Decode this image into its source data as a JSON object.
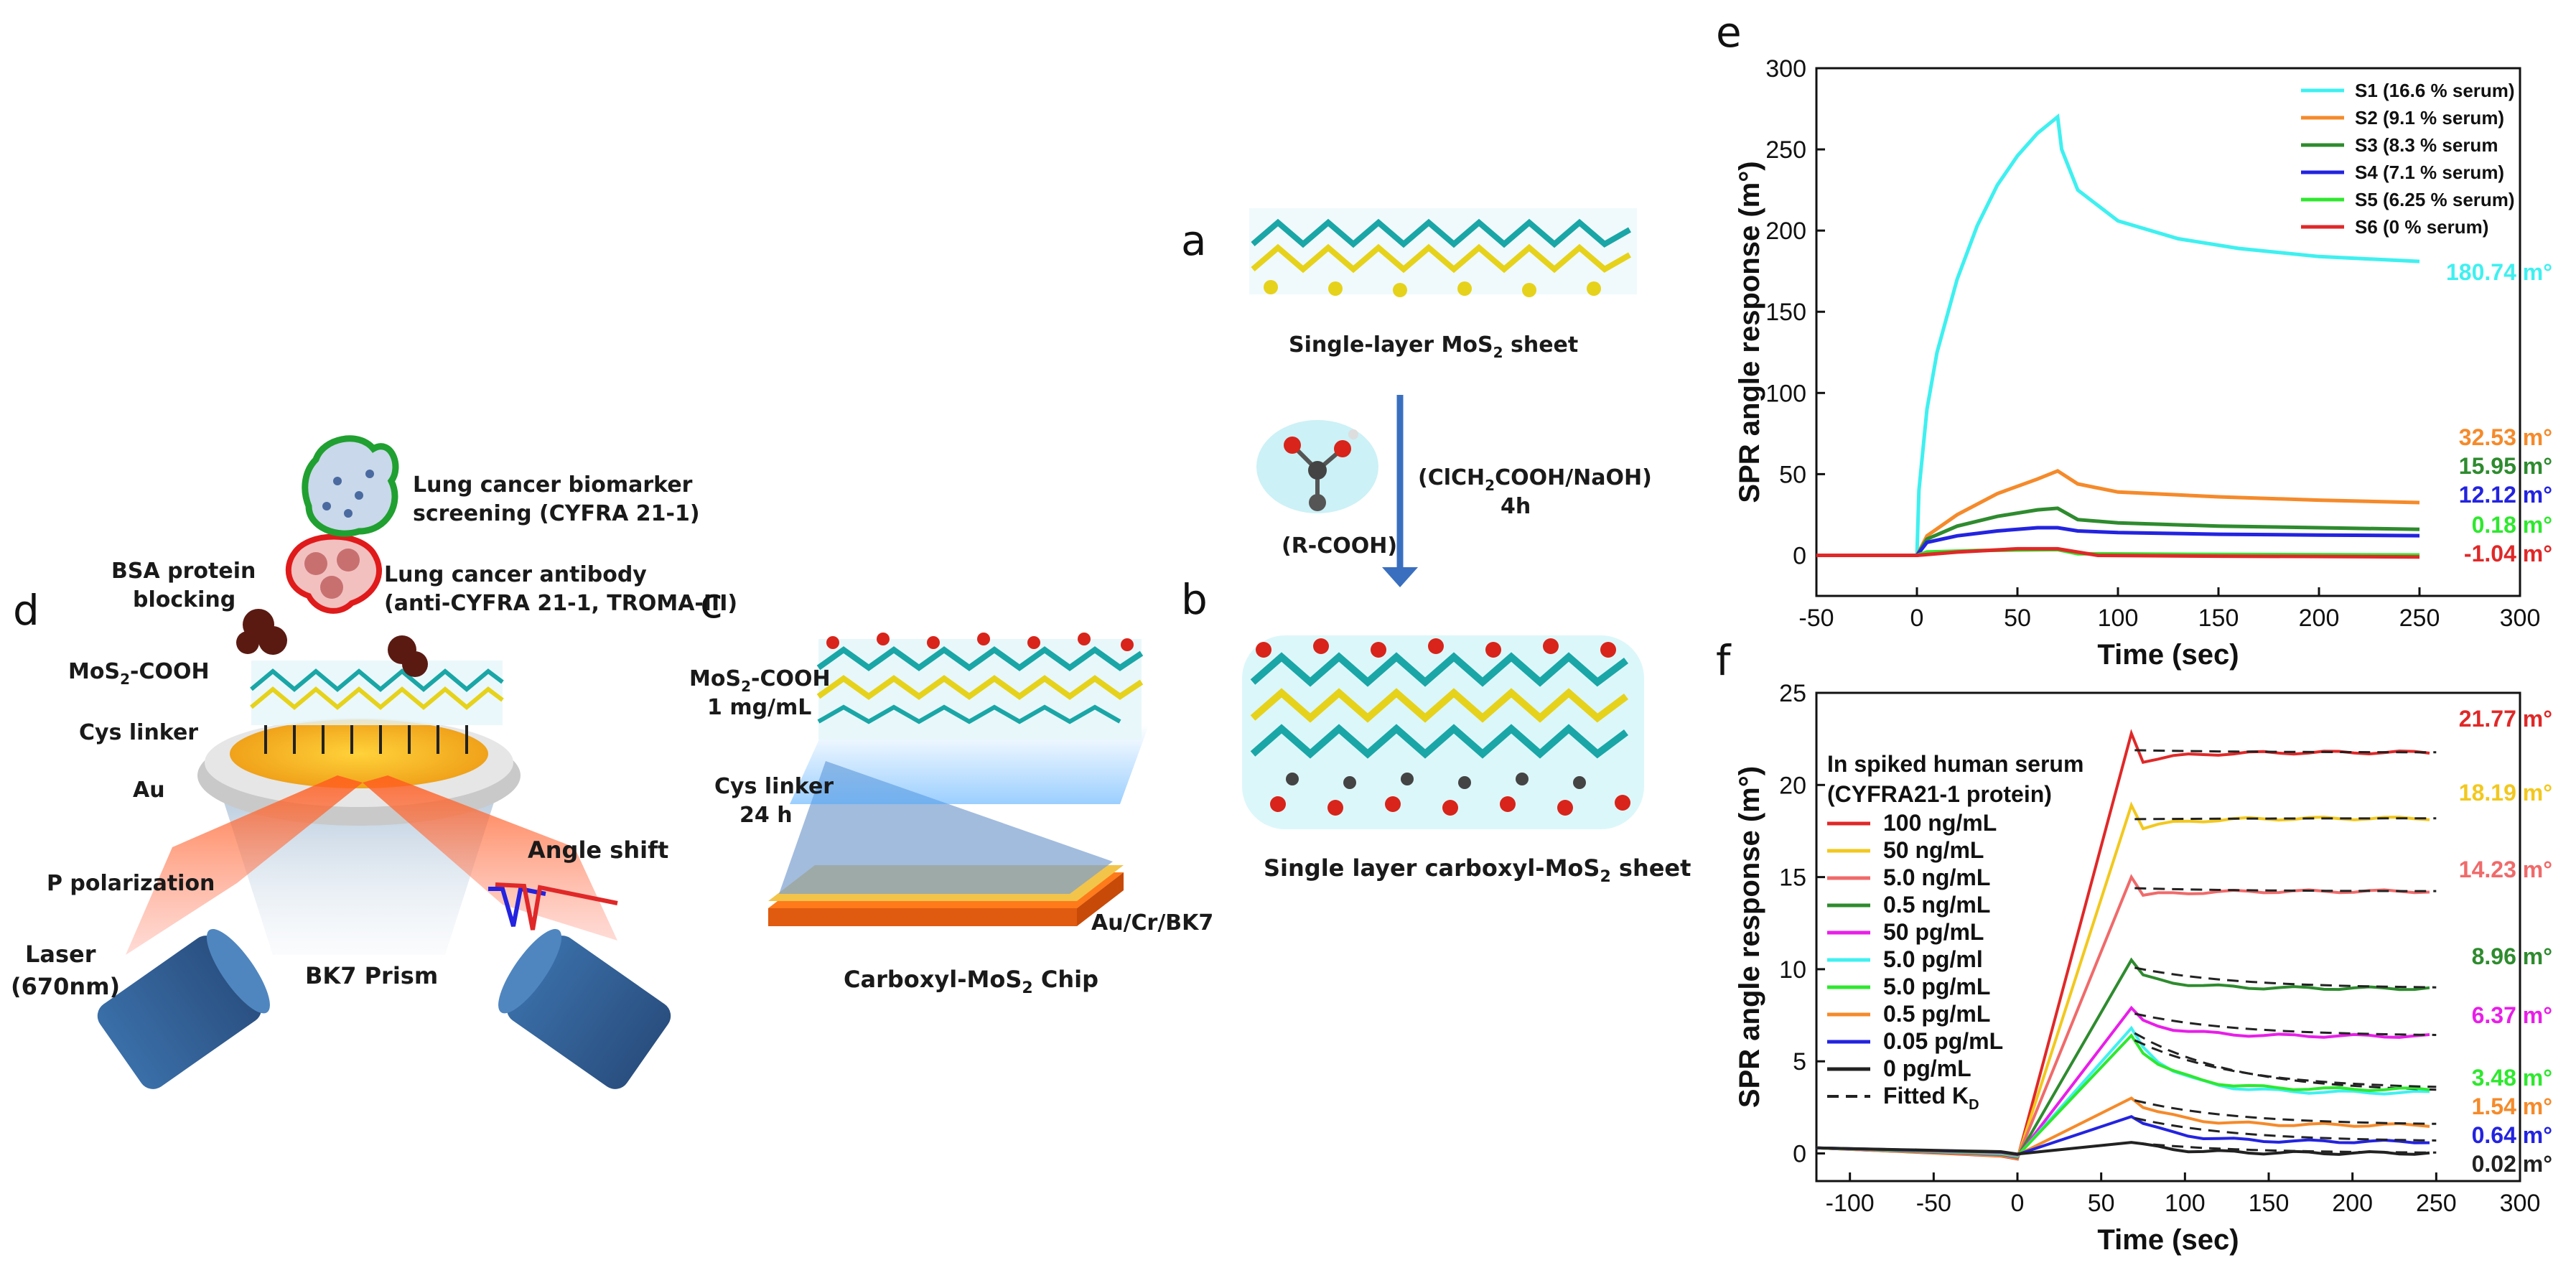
{
  "panel_labels": {
    "a": "a",
    "b": "b",
    "c": "c",
    "d": "d",
    "e": "e",
    "f": "f"
  },
  "scheme": {
    "sheet_a_caption": "Single-layer MoS",
    "sheet_a_caption_sub": "2",
    "sheet_a_caption_tail": " sheet",
    "reagent": "(ClCH",
    "reagent_sub": "2",
    "reagent_tail": "COOH/NaOH)",
    "time": "4h",
    "group_label": "(R-COOH)",
    "sheet_b_caption": "Single layer carboxyl-MoS",
    "sheet_b_caption_sub": "2",
    "sheet_b_caption_tail": " sheet"
  },
  "chip": {
    "mos2_label": "MoS",
    "mos2_sub": "2",
    "mos2_tail": "-COOH",
    "conc": "1 mg/mL",
    "cys_label": "Cys linker",
    "cys_time": "24 h",
    "substrate": "Au/Cr/BK7",
    "caption": "Carboxyl-MoS",
    "caption_sub": "2",
    "caption_tail": " Chip"
  },
  "setup": {
    "biomarker_line1": "Lung cancer biomarker",
    "biomarker_line2": "screening (CYFRA 21-1)",
    "antibody_line1": "Lung cancer antibody",
    "antibody_line2": "(anti-CYFRA 21-1, TROMA-III)",
    "bsa_line1": "BSA protein",
    "bsa_line2": "blocking",
    "mos2cooh": "MoS",
    "mos2cooh_sub": "2",
    "mos2cooh_tail": "-COOH",
    "cys": "Cys linker",
    "au": "Au",
    "p_pol": "P polarization",
    "angle_shift": "Angle shift",
    "laser_line1": "Laser",
    "laser_line2": "(670nm)",
    "prism": "BK7 Prism"
  },
  "colors": {
    "cyan": "#3ff0f0",
    "orange": "#f58a2a",
    "darkgreen": "#2e8b2e",
    "blue": "#2323e0",
    "green": "#2ee82e",
    "red": "#e02828",
    "yellow": "#f2c81e",
    "pink": "#f06a6a",
    "magenta": "#e81ee8",
    "gray": "#222222"
  },
  "chart_data": [
    {
      "panel": "e",
      "type": "line",
      "title": "",
      "xlabel": "Time (sec)",
      "ylabel": "SPR angle response (m°)",
      "xlim": [
        -50,
        300
      ],
      "ylim": [
        -25,
        300
      ],
      "xticks": [
        -50,
        0,
        50,
        100,
        150,
        200,
        250,
        300
      ],
      "yticks": [
        0,
        50,
        100,
        150,
        200,
        250,
        300
      ],
      "legend_position": "top-right",
      "series": [
        {
          "name": "S1 (16.6 % serum)",
          "color": "cyan",
          "end_label": "180.74 m°",
          "x": [
            -50,
            0,
            1,
            5,
            10,
            20,
            30,
            40,
            50,
            60,
            70,
            72,
            80,
            100,
            130,
            160,
            200,
            250
          ],
          "y": [
            0,
            0,
            40,
            90,
            125,
            170,
            203,
            228,
            246,
            260,
            270,
            250,
            225,
            206,
            195,
            189,
            184,
            181
          ]
        },
        {
          "name": "S2 (9.1 % serum)",
          "color": "orange",
          "end_label": "32.53 m°",
          "x": [
            -50,
            0,
            5,
            20,
            40,
            60,
            70,
            80,
            100,
            150,
            200,
            250
          ],
          "y": [
            0,
            0,
            12,
            25,
            38,
            47,
            52,
            44,
            39,
            36,
            34,
            32.5
          ]
        },
        {
          "name": "S3 (8.3 % serum",
          "color": "darkgreen",
          "end_label": "15.95 m°",
          "x": [
            -50,
            0,
            5,
            20,
            40,
            60,
            70,
            80,
            100,
            150,
            200,
            250
          ],
          "y": [
            0,
            0,
            10,
            18,
            24,
            28,
            29,
            22,
            20,
            18,
            17,
            16
          ]
        },
        {
          "name": "S4 (7.1 % serum)",
          "color": "blue",
          "end_label": "12.12 m°",
          "x": [
            -50,
            0,
            5,
            20,
            40,
            60,
            70,
            80,
            100,
            150,
            200,
            250
          ],
          "y": [
            0,
            0,
            8,
            12,
            15,
            17,
            17,
            15,
            14,
            13,
            12.5,
            12.1
          ]
        },
        {
          "name": "S5 (6.25 % serum)",
          "color": "green",
          "end_label": "0.18 m°",
          "x": [
            -50,
            0,
            5,
            30,
            70,
            80,
            150,
            250
          ],
          "y": [
            0,
            0,
            2,
            3,
            3.5,
            1,
            0.5,
            0.2
          ]
        },
        {
          "name": "S6 (0 % serum)",
          "color": "red",
          "end_label": "-1.04 m°",
          "x": [
            -50,
            0,
            20,
            50,
            70,
            90,
            150,
            250
          ],
          "y": [
            0,
            0,
            2,
            4,
            4,
            0,
            -0.5,
            -1
          ]
        }
      ]
    },
    {
      "panel": "f",
      "type": "line",
      "title": "",
      "xlabel": "Time (sec)",
      "ylabel": "SPR angle response (m°)",
      "xlim": [
        -120,
        300
      ],
      "ylim": [
        -1.5,
        25
      ],
      "xticks": [
        -100,
        -50,
        0,
        50,
        100,
        150,
        200,
        250,
        300
      ],
      "yticks": [
        0,
        5,
        10,
        15,
        20,
        25
      ],
      "legend_title_line1": "In spiked human serum",
      "legend_title_line2": "(CYFRA21-1 protein)",
      "legend_position": "top-left",
      "fit_legend": "Fitted K",
      "fit_legend_sub": "D",
      "series": [
        {
          "name": "100 ng/mL",
          "color": "red",
          "peak": 22.8,
          "end": 21.77,
          "end_label": "21.77 m°"
        },
        {
          "name": "50 ng/mL",
          "color": "yellow",
          "peak": 18.9,
          "end": 18.19,
          "end_label": "18.19 m°"
        },
        {
          "name": "5.0 ng/mL",
          "color": "pink",
          "peak": 15.0,
          "end": 14.23,
          "end_label": "14.23 m°"
        },
        {
          "name": "0.5 ng/mL",
          "color": "darkgreen",
          "peak": 10.5,
          "end": 8.96,
          "end_label": "8.96 m°"
        },
        {
          "name": "50 pg/mL",
          "color": "magenta",
          "peak": 7.9,
          "end": 6.37,
          "end_label": "6.37 m°"
        },
        {
          "name": "5.0 pg/ml",
          "color": "cyan",
          "peak": 6.8,
          "end": 3.3,
          "end_label": ""
        },
        {
          "name": "5.0 pg/mL",
          "color": "green",
          "peak": 6.4,
          "end": 3.48,
          "end_label": "3.48 m°"
        },
        {
          "name": "0.5 pg/mL",
          "color": "orange",
          "peak": 3.0,
          "end": 1.54,
          "end_label": "1.54 m°"
        },
        {
          "name": "0.05 pg/mL",
          "color": "blue",
          "peak": 2.0,
          "end": 0.64,
          "end_label": "0.64 m°"
        },
        {
          "name": "0 pg/mL",
          "color": "gray",
          "peak": 0.6,
          "end": 0.02,
          "end_label": "0.02 m°"
        }
      ]
    }
  ]
}
